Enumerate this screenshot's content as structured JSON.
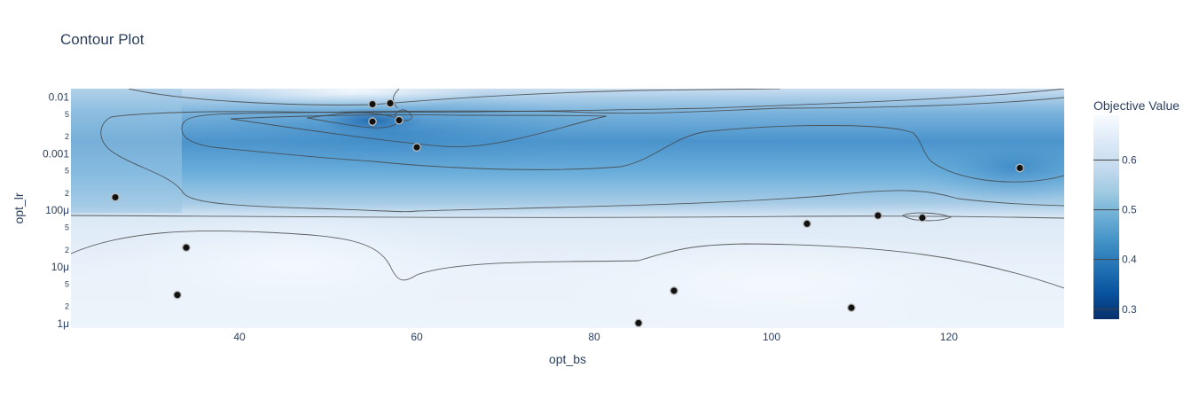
{
  "chart_data": {
    "type": "contour",
    "title": "Contour Plot",
    "xlabel": "opt_bs",
    "ylabel": "opt_lr",
    "xlim": [
      21,
      133
    ],
    "ylim_log10": [
      -6.08,
      -1.85
    ],
    "y_scale": "log",
    "x_ticks": [
      40,
      60,
      80,
      100,
      120
    ],
    "x_tick_labels": [
      "40",
      "60",
      "80",
      "100",
      "120"
    ],
    "y_major_ticks": [
      0.01,
      0.001,
      0.0001,
      1e-05,
      1e-06
    ],
    "y_major_labels": [
      "0.01",
      "0.001",
      "100μ",
      "10μ",
      "1μ"
    ],
    "y_minor_ticks": [
      0.005,
      0.002,
      0.0005,
      0.0002,
      5e-05,
      2e-05,
      5e-06,
      2e-06
    ],
    "y_minor_labels": [
      "5",
      "2",
      "5",
      "2",
      "5",
      "2",
      "5",
      "2"
    ],
    "colorbar": {
      "title": "Objective Value",
      "range": [
        0.28,
        0.69
      ],
      "ticks": [
        0.3,
        0.4,
        0.5,
        0.6
      ],
      "tick_labels": [
        "0.3",
        "0.4",
        "0.5",
        "0.6"
      ],
      "colors": [
        "#08306b",
        "#08519c",
        "#2171b5",
        "#4292c6",
        "#6baed6",
        "#9ecae1",
        "#c6dbef",
        "#deebf7",
        "#f7fbff"
      ]
    },
    "trials": [
      {
        "x": 55,
        "y": 0.0075
      },
      {
        "x": 57,
        "y": 0.0078
      },
      {
        "x": 55,
        "y": 0.0037
      },
      {
        "x": 58,
        "y": 0.0039
      },
      {
        "x": 60,
        "y": 0.0013
      },
      {
        "x": 26,
        "y": 0.00017
      },
      {
        "x": 34,
        "y": 2.2e-05
      },
      {
        "x": 33,
        "y": 3.2e-06
      },
      {
        "x": 85,
        "y": 1.02e-06
      },
      {
        "x": 89,
        "y": 3.8e-06
      },
      {
        "x": 104,
        "y": 5.8e-05
      },
      {
        "x": 109,
        "y": 1.9e-06
      },
      {
        "x": 112,
        "y": 8.1e-05
      },
      {
        "x": 117,
        "y": 7.4e-05
      },
      {
        "x": 128,
        "y": 0.00056
      }
    ]
  }
}
